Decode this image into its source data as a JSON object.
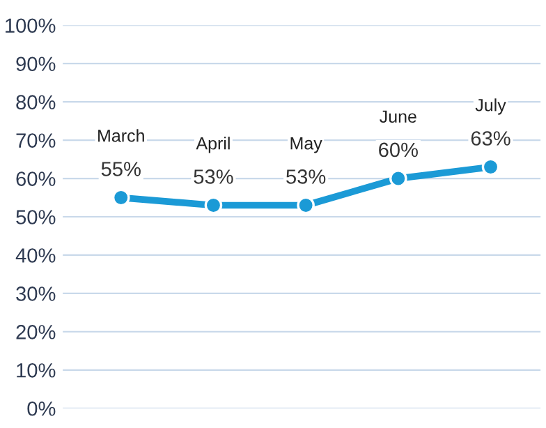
{
  "chart_data": {
    "type": "line",
    "categories": [
      "March",
      "April",
      "May",
      "June",
      "July"
    ],
    "series": [
      {
        "color": "#1b9ad6",
        "values": [
          55,
          53,
          53,
          60,
          63
        ],
        "value_labels": [
          "55%",
          "53%",
          "53%",
          "60%",
          "63%"
        ]
      }
    ],
    "ylim": [
      0,
      100
    ],
    "yticks": [
      {
        "value": 0,
        "label": "0%"
      },
      {
        "value": 10,
        "label": "10%"
      },
      {
        "value": 20,
        "label": "20%"
      },
      {
        "value": 30,
        "label": "30%"
      },
      {
        "value": 40,
        "label": "40%"
      },
      {
        "value": 50,
        "label": "50%"
      },
      {
        "value": 60,
        "label": "60%"
      },
      {
        "value": 70,
        "label": "70%"
      },
      {
        "value": 80,
        "label": "80%"
      },
      {
        "value": 90,
        "label": "90%"
      },
      {
        "value": 100,
        "label": "100%"
      }
    ],
    "grid": "y",
    "marker": "circle",
    "line_style": "solid",
    "tick_labels": "y"
  }
}
